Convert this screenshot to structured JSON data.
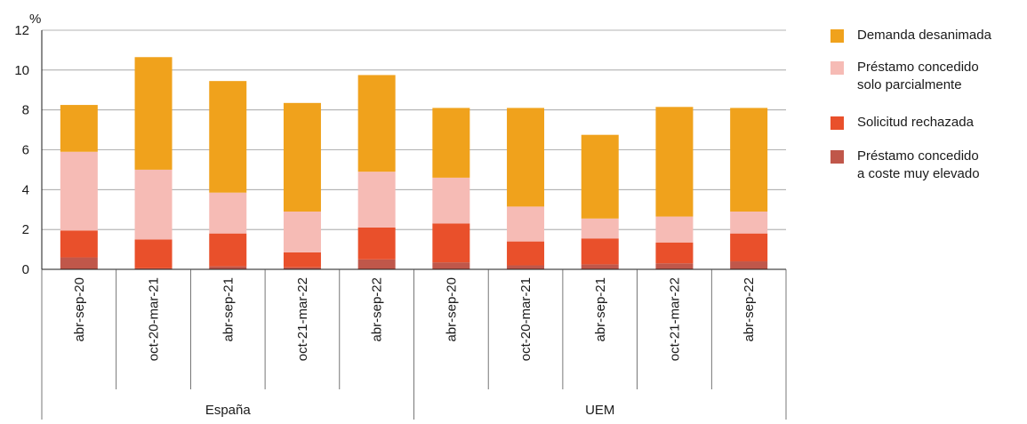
{
  "chart_data": {
    "type": "bar",
    "stacked": true,
    "y_unit": "%",
    "ylim": [
      0,
      12
    ],
    "yticks": [
      0,
      2,
      4,
      6,
      8,
      10,
      12
    ],
    "grid": true,
    "legend_position": "right",
    "groups": [
      {
        "name": "España",
        "categories": [
          "abr-sep-20",
          "oct-20-mar-21",
          "abr-sep-21",
          "oct-21-mar-22",
          "abr-sep-22"
        ]
      },
      {
        "name": "UEM",
        "categories": [
          "abr-sep-20",
          "oct-20-mar-21",
          "abr-sep-21",
          "oct-21-mar-22",
          "abr-sep-22"
        ]
      }
    ],
    "series": [
      {
        "name": "Préstamo concedido\na coste muy elevado",
        "color": "#c0574a",
        "values": [
          0.6,
          0.05,
          0.15,
          0.1,
          0.5,
          0.35,
          0.2,
          0.25,
          0.3,
          0.4
        ]
      },
      {
        "name": "Solicitud rechazada",
        "color": "#e9502b",
        "values": [
          1.35,
          1.45,
          1.65,
          0.75,
          1.6,
          1.95,
          1.2,
          1.3,
          1.05,
          1.4
        ]
      },
      {
        "name": "Préstamo concedido\nsolo parcialmente",
        "color": "#f6bbb5",
        "values": [
          3.95,
          3.5,
          2.05,
          2.05,
          2.8,
          2.3,
          1.75,
          1.0,
          1.3,
          1.1
        ]
      },
      {
        "name": "Demanda desanimada",
        "color": "#f0a21c",
        "values": [
          2.35,
          5.65,
          5.6,
          5.45,
          4.85,
          3.5,
          4.95,
          4.2,
          5.5,
          5.2
        ]
      }
    ]
  }
}
